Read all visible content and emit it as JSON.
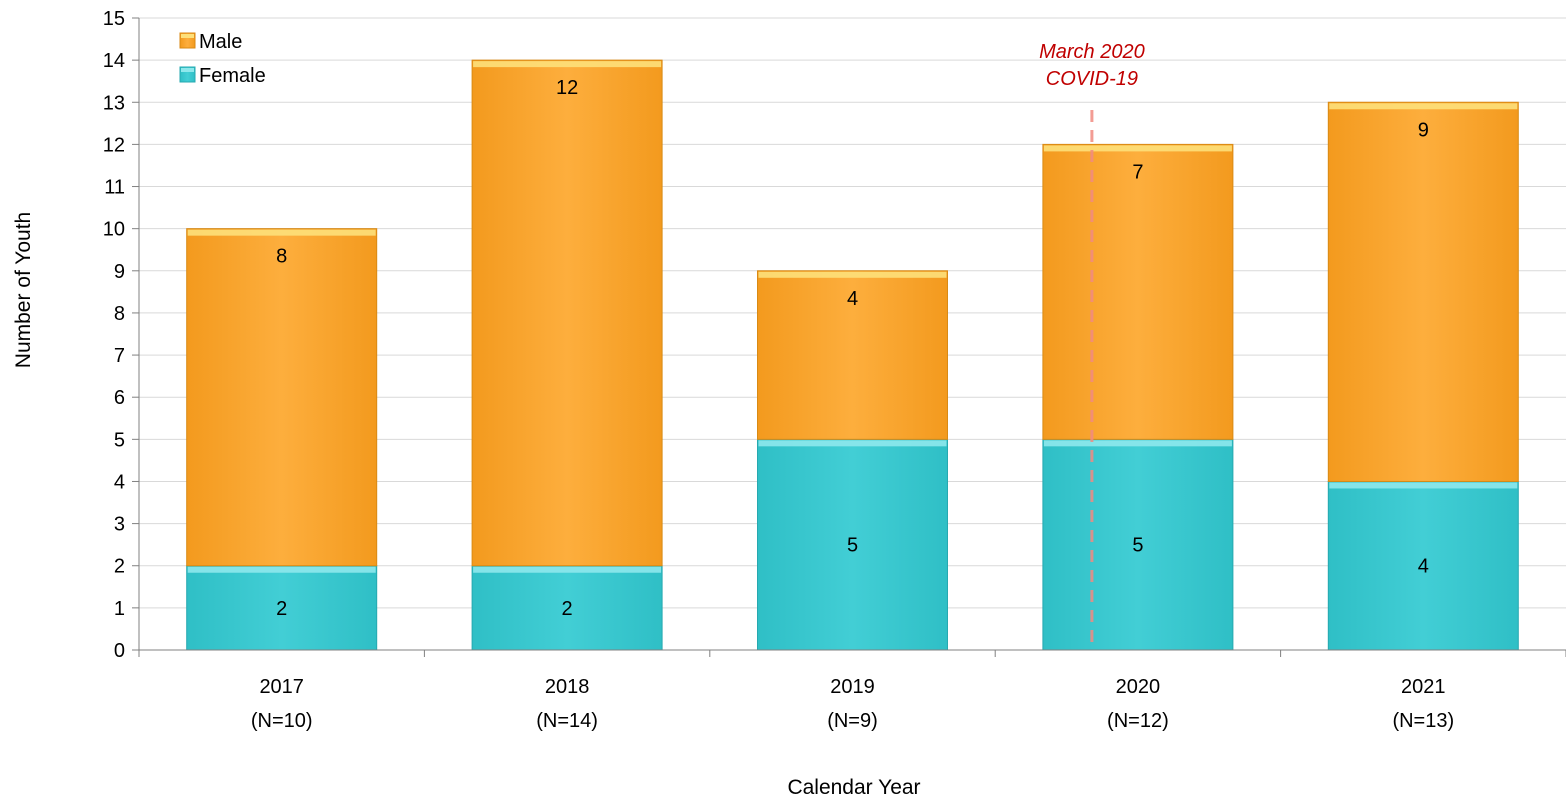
{
  "chart_data": {
    "type": "bar",
    "stacked": true,
    "categories": [
      "2017",
      "2018",
      "2019",
      "2020",
      "2021"
    ],
    "category_sublabels": [
      "(N=10)",
      "(N=14)",
      "(N=9)",
      "(N=12)",
      "(N=13)"
    ],
    "series": [
      {
        "name": "Female",
        "values": [
          2,
          2,
          5,
          5,
          4
        ],
        "color": "#3ecbd2"
      },
      {
        "name": "Male",
        "values": [
          8,
          12,
          4,
          7,
          9
        ],
        "color": "#fdaa38"
      }
    ],
    "xlabel": "Calendar Year",
    "ylabel": "Number of Youth",
    "ylim": [
      0,
      15
    ],
    "yticks": [
      0,
      1,
      2,
      3,
      4,
      5,
      6,
      7,
      8,
      9,
      10,
      11,
      12,
      13,
      14,
      15
    ],
    "grid": true,
    "legend": {
      "placement": "top-left",
      "order": [
        "Male",
        "Female"
      ]
    },
    "annotation": {
      "lines": [
        "March 2020",
        "COVID-19"
      ],
      "category": "2020",
      "color": "#c00000",
      "line_color": "#f28b82",
      "style": "dashed"
    }
  }
}
